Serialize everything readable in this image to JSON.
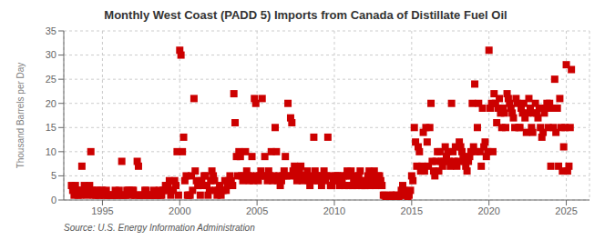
{
  "chart_data": {
    "type": "scatter",
    "title": "Monthly West Coast (PADD 5) Imports from Canada of Distillate Fuel Oil",
    "ylabel": "Thousand Barrels per Day",
    "annotations": [
      "Source: U.S. Energy Information Administration"
    ],
    "color": "#cc0000",
    "marker": "square",
    "grid": true,
    "xlim": [
      1992.5,
      2026.5
    ],
    "xticks": [
      1995,
      2000,
      2005,
      2010,
      2015,
      2020,
      2025
    ],
    "ylim": [
      0,
      35
    ],
    "yticks": [
      0,
      5,
      10,
      15,
      20,
      25,
      30,
      35
    ],
    "x": [
      1993.0,
      1993.08,
      1993.17,
      1993.25,
      1993.33,
      1993.42,
      1993.5,
      1993.58,
      1993.67,
      1993.75,
      1993.83,
      1993.92,
      1994.0,
      1994.08,
      1994.17,
      1994.25,
      1994.33,
      1994.42,
      1994.5,
      1994.58,
      1994.67,
      1994.75,
      1994.83,
      1994.92,
      1995.0,
      1995.08,
      1995.17,
      1995.25,
      1995.33,
      1995.42,
      1995.5,
      1995.58,
      1995.67,
      1995.75,
      1995.83,
      1995.92,
      1996.0,
      1996.08,
      1996.17,
      1996.25,
      1996.33,
      1996.42,
      1996.5,
      1996.58,
      1996.67,
      1996.75,
      1996.83,
      1996.92,
      1997.0,
      1997.08,
      1997.17,
      1997.25,
      1997.33,
      1997.42,
      1997.5,
      1997.58,
      1997.67,
      1997.75,
      1997.83,
      1997.92,
      1998.0,
      1998.08,
      1998.17,
      1998.25,
      1998.33,
      1998.42,
      1998.5,
      1998.58,
      1998.67,
      1998.75,
      1998.83,
      1998.92,
      1999.0,
      1999.08,
      1999.17,
      1999.25,
      1999.33,
      1999.42,
      1999.5,
      1999.58,
      1999.67,
      1999.75,
      1999.83,
      1999.92,
      2000.0,
      2000.08,
      2000.17,
      2000.25,
      2000.33,
      2000.42,
      2000.5,
      2000.58,
      2000.67,
      2000.75,
      2000.83,
      2000.92,
      2001.0,
      2001.08,
      2001.17,
      2001.25,
      2001.33,
      2001.42,
      2001.5,
      2001.58,
      2001.67,
      2001.75,
      2001.83,
      2001.92,
      2002.0,
      2002.08,
      2002.17,
      2002.25,
      2002.33,
      2002.42,
      2002.5,
      2002.58,
      2002.67,
      2002.75,
      2002.83,
      2002.92,
      2003.0,
      2003.08,
      2003.17,
      2003.25,
      2003.33,
      2003.42,
      2003.5,
      2003.58,
      2003.67,
      2003.75,
      2003.83,
      2003.92,
      2004.0,
      2004.08,
      2004.17,
      2004.25,
      2004.33,
      2004.42,
      2004.5,
      2004.58,
      2004.67,
      2004.75,
      2004.83,
      2004.92,
      2005.0,
      2005.08,
      2005.17,
      2005.25,
      2005.33,
      2005.42,
      2005.5,
      2005.58,
      2005.67,
      2005.75,
      2005.83,
      2005.92,
      2006.0,
      2006.08,
      2006.17,
      2006.25,
      2006.33,
      2006.42,
      2006.5,
      2006.58,
      2006.67,
      2006.75,
      2006.83,
      2006.92,
      2007.0,
      2007.08,
      2007.17,
      2007.25,
      2007.33,
      2007.42,
      2007.5,
      2007.58,
      2007.67,
      2007.75,
      2007.83,
      2007.92,
      2008.0,
      2008.08,
      2008.17,
      2008.25,
      2008.33,
      2008.42,
      2008.5,
      2008.58,
      2008.67,
      2008.75,
      2008.83,
      2008.92,
      2009.0,
      2009.08,
      2009.17,
      2009.25,
      2009.33,
      2009.42,
      2009.5,
      2009.58,
      2009.67,
      2009.75,
      2009.83,
      2009.92,
      2010.0,
      2010.08,
      2010.17,
      2010.25,
      2010.33,
      2010.42,
      2010.5,
      2010.58,
      2010.67,
      2010.75,
      2010.83,
      2010.92,
      2011.0,
      2011.08,
      2011.17,
      2011.25,
      2011.33,
      2011.42,
      2011.5,
      2011.58,
      2011.67,
      2011.75,
      2011.83,
      2011.92,
      2012.0,
      2012.08,
      2012.17,
      2012.25,
      2012.33,
      2012.42,
      2012.5,
      2012.58,
      2012.67,
      2012.75,
      2012.83,
      2012.92,
      2013.0,
      2013.08,
      2013.17,
      2013.25,
      2013.33,
      2013.42,
      2013.5,
      2013.58,
      2013.67,
      2013.75,
      2013.83,
      2013.92,
      2014.0,
      2014.08,
      2014.17,
      2014.25,
      2014.33,
      2014.42,
      2014.5,
      2014.58,
      2014.67,
      2014.75,
      2014.83,
      2014.92,
      2015.0,
      2015.08,
      2015.17,
      2015.25,
      2015.33,
      2015.42,
      2015.5,
      2015.58,
      2015.67,
      2015.75,
      2015.83,
      2015.92,
      2016.0,
      2016.08,
      2016.17,
      2016.25,
      2016.33,
      2016.42,
      2016.5,
      2016.58,
      2016.67,
      2016.75,
      2016.83,
      2016.92,
      2017.0,
      2017.08,
      2017.17,
      2017.25,
      2017.33,
      2017.42,
      2017.5,
      2017.58,
      2017.67,
      2017.75,
      2017.83,
      2017.92,
      2018.0,
      2018.08,
      2018.17,
      2018.25,
      2018.33,
      2018.42,
      2018.5,
      2018.58,
      2018.67,
      2018.75,
      2018.83,
      2018.92,
      2019.0,
      2019.08,
      2019.17,
      2019.25,
      2019.33,
      2019.42,
      2019.5,
      2019.58,
      2019.67,
      2019.75,
      2019.83,
      2019.92,
      2020.0,
      2020.08,
      2020.17,
      2020.25,
      2020.33,
      2020.42,
      2020.5,
      2020.58,
      2020.67,
      2020.75,
      2020.83,
      2020.92,
      2021.0,
      2021.08,
      2021.17,
      2021.25,
      2021.33,
      2021.42,
      2021.5,
      2021.58,
      2021.67,
      2021.75,
      2021.83,
      2021.92,
      2022.0,
      2022.08,
      2022.17,
      2022.25,
      2022.33,
      2022.42,
      2022.5,
      2022.58,
      2022.67,
      2022.75,
      2022.83,
      2022.92,
      2023.0,
      2023.08,
      2023.17,
      2023.25,
      2023.33,
      2023.42,
      2023.5,
      2023.58,
      2023.67,
      2023.75,
      2023.83,
      2023.92,
      2024.0,
      2024.08,
      2024.17,
      2024.25,
      2024.33,
      2024.42,
      2024.5,
      2024.58,
      2024.67,
      2024.75,
      2024.83,
      2024.92,
      2025.0,
      2025.08,
      2025.17,
      2025.25,
      2025.33
    ],
    "values": [
      3,
      2,
      1,
      3,
      2,
      1,
      2,
      1,
      7,
      2,
      3,
      2,
      1,
      2,
      3,
      10,
      2,
      1,
      2,
      1,
      2,
      1,
      1,
      2,
      2,
      1,
      1,
      2,
      1,
      1,
      1,
      1,
      1,
      1,
      2,
      1,
      1,
      2,
      1,
      8,
      1,
      1,
      1,
      2,
      2,
      2,
      1,
      2,
      2,
      1,
      1,
      8,
      7,
      1,
      1,
      1,
      1,
      2,
      2,
      1,
      1,
      1,
      1,
      1,
      2,
      1,
      1,
      1,
      2,
      1,
      1,
      2,
      2,
      3,
      2,
      3,
      4,
      1,
      2,
      2,
      4,
      3,
      10,
      1,
      31,
      30,
      10,
      13,
      4,
      5,
      1,
      1,
      1,
      5,
      2,
      21,
      6,
      4,
      3,
      3,
      1,
      4,
      3,
      5,
      5,
      3,
      1,
      2,
      4,
      6,
      5,
      4,
      2,
      1,
      2,
      3,
      1,
      2,
      2,
      4,
      2,
      3,
      4,
      5,
      4,
      3,
      22,
      16,
      9,
      5,
      10,
      9,
      5,
      4,
      5,
      10,
      6,
      5,
      4,
      5,
      9,
      4,
      21,
      20,
      5,
      4,
      5,
      6,
      21,
      5,
      9,
      5,
      4,
      6,
      5,
      10,
      4,
      5,
      15,
      10,
      4,
      5,
      3,
      4,
      5,
      6,
      9,
      5,
      20,
      5,
      17,
      16,
      6,
      7,
      5,
      4,
      5,
      6,
      7,
      4,
      5,
      5,
      5,
      6,
      4,
      3,
      5,
      4,
      13,
      6,
      5,
      4,
      4,
      5,
      3,
      5,
      6,
      4,
      5,
      13,
      5,
      3,
      3,
      4,
      4,
      5,
      5,
      5,
      3,
      4,
      4,
      5,
      3,
      5,
      6,
      3,
      5,
      6,
      3,
      4,
      5,
      3,
      4,
      5,
      6,
      3,
      4,
      3,
      3,
      4,
      5,
      6,
      3,
      4,
      5,
      6,
      3,
      4,
      5,
      5,
      4,
      3,
      1,
      1,
      0,
      0,
      0,
      0,
      1,
      1,
      0,
      0,
      1,
      0,
      0,
      1,
      2,
      3,
      2,
      1,
      1,
      0,
      1,
      2,
      5,
      4,
      15,
      12,
      7,
      11,
      10,
      6,
      7,
      14,
      6,
      15,
      12,
      7,
      15,
      20,
      8,
      6,
      5,
      8,
      10,
      6,
      10,
      8,
      7,
      8,
      11,
      9,
      10,
      8,
      7,
      20,
      10,
      8,
      11,
      7,
      8,
      12,
      11,
      10,
      9,
      8,
      7,
      6,
      8,
      9,
      10,
      20,
      11,
      24,
      10,
      15,
      20,
      10,
      7,
      19,
      11,
      12,
      9,
      10,
      31,
      19,
      20,
      10,
      22,
      20,
      16,
      19,
      21,
      18,
      15,
      19,
      18,
      15,
      22,
      21,
      20,
      19,
      18,
      17,
      15,
      21,
      20,
      15,
      15,
      19,
      18,
      20,
      17,
      14,
      18,
      21,
      19,
      15,
      14,
      18,
      20,
      18,
      17,
      19,
      15,
      13,
      14,
      18,
      19,
      20,
      15,
      20,
      7,
      19,
      15,
      25,
      14,
      19,
      7,
      21,
      15,
      6,
      11,
      15,
      28,
      6,
      7,
      15,
      27
    ]
  }
}
